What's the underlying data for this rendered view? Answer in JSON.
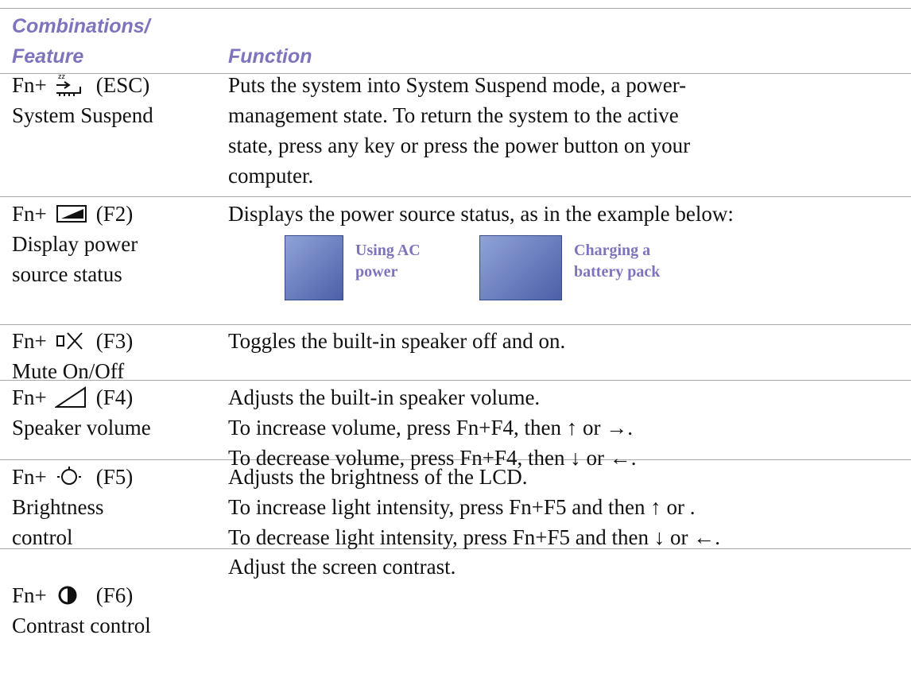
{
  "header": {
    "col1": [
      "Combinations/",
      "Feature"
    ],
    "col2": "Function"
  },
  "rows": [
    {
      "fn": "Fn+",
      "key": "(ESC)",
      "feature": [
        "System Suspend"
      ],
      "function": [
        "Puts the system into System Suspend mode, a power-",
        "management state. To return the system to the active",
        "state, press any key or press the power button on your",
        "computer."
      ]
    },
    {
      "fn": "Fn+",
      "key": "(F2)",
      "feature": [
        "Display power",
        "source status"
      ],
      "function": [
        "Displays the power source status, as in the example below:"
      ],
      "examples": [
        [
          "Using AC",
          "power"
        ],
        [
          "Charging a",
          "battery pack"
        ]
      ]
    },
    {
      "fn": "Fn+",
      "key": "(F3)",
      "feature": [
        "Mute On/Off"
      ],
      "function": [
        "Toggles the built-in speaker off and on."
      ]
    },
    {
      "fn": "Fn+",
      "key": "(F4)",
      "feature": [
        "Speaker volume"
      ],
      "function": [
        "Adjusts the built-in speaker volume.",
        "To increase volume, press Fn+F4, then ↑ or →.",
        "To decrease volume, press Fn+F4, then ↓ or ←."
      ]
    },
    {
      "fn": "Fn+",
      "key": "(F5)",
      "feature": [
        "Brightness",
        "control"
      ],
      "function": [
        "Adjusts the brightness of the LCD.",
        "To increase light intensity, press Fn+F5 and then ↑ or .",
        "To decrease light intensity, press Fn+F5 and then ↓ or ←."
      ]
    },
    {
      "fn": "Fn+",
      "key": "(F6)",
      "feature": [
        "Contrast control"
      ],
      "function": [
        "Adjust the screen contrast."
      ]
    }
  ]
}
